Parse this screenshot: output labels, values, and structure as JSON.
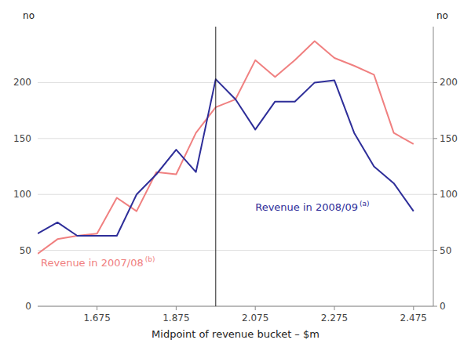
{
  "chart_data": {
    "type": "line",
    "xlabel": "Midpoint of revenue bucket – $m",
    "ylabel": "no",
    "y2label": "no",
    "x": [
      1.525,
      1.575,
      1.625,
      1.675,
      1.725,
      1.775,
      1.825,
      1.875,
      1.925,
      1.975,
      2.025,
      2.075,
      2.125,
      2.175,
      2.225,
      2.275,
      2.325,
      2.375,
      2.425,
      2.475
    ],
    "series": [
      {
        "name": "Revenue in 2007/08",
        "superscript": "(b)",
        "color": "#F08080",
        "values": [
          47,
          60,
          63,
          65,
          97,
          85,
          120,
          118,
          155,
          178,
          185,
          220,
          205,
          220,
          237,
          222,
          215,
          207,
          155,
          145
        ]
      },
      {
        "name": "Revenue in 2008/09",
        "superscript": "(a)",
        "color": "#2E2E99",
        "values": [
          65,
          75,
          63,
          63,
          63,
          100,
          118,
          140,
          120,
          203,
          185,
          158,
          183,
          183,
          200,
          202,
          155,
          125,
          110,
          85
        ]
      }
    ],
    "vline": 1.975,
    "xlim": [
      1.525,
      2.525
    ],
    "xticks": [
      1.675,
      1.875,
      2.075,
      2.275,
      2.475
    ],
    "ylim": [
      0,
      250
    ],
    "yticks": [
      0,
      50,
      100,
      150,
      200
    ],
    "y2lim": [
      0,
      250
    ],
    "y2ticks": [
      0,
      50,
      100,
      150,
      200
    ],
    "grid": true
  }
}
